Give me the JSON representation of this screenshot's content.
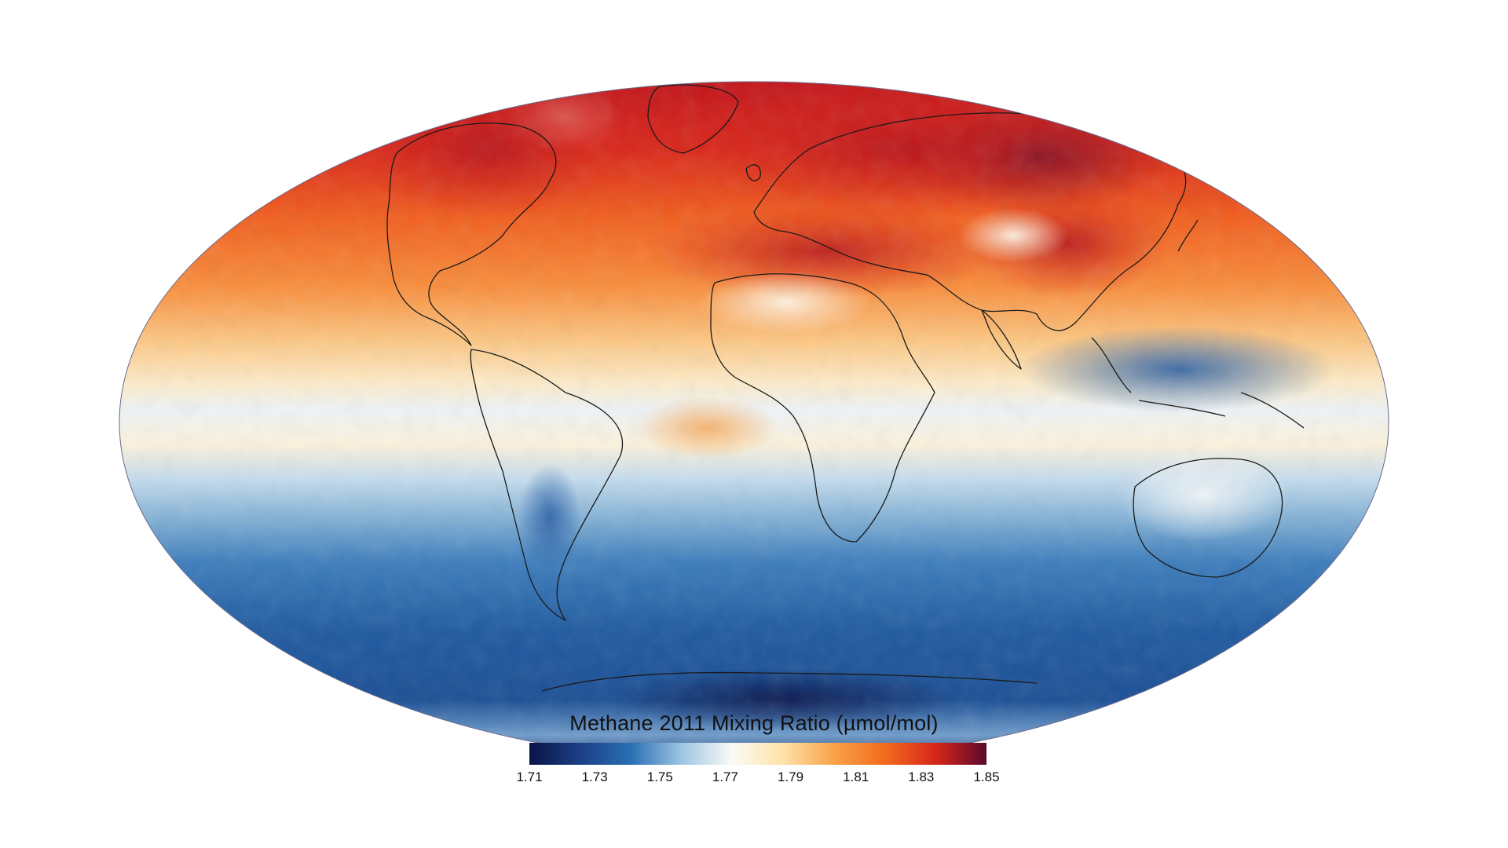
{
  "map": {
    "variable": "Methane",
    "year": "2011",
    "projection": "mollweide",
    "colors": {
      "min": "#0b1446",
      "low": "#1d4e93",
      "mid_low": "#7fb0d6",
      "neutral": "#fbfaf0",
      "mid_high": "#fdc77c",
      "high": "#f56a1e",
      "max": "#5a0a2b",
      "coastline": "#1a1a1a"
    }
  },
  "legend": {
    "title": "Methane 2011 Mixing Ratio (µmol/mol)",
    "ticks": [
      "1.71",
      "1.73",
      "1.75",
      "1.77",
      "1.79",
      "1.81",
      "1.83",
      "1.85"
    ],
    "range": [
      1.71,
      1.85
    ],
    "gradient_stops": [
      "#0b1446",
      "#1b3f85",
      "#2a6fb4",
      "#9ec6e4",
      "#fbfbf4",
      "#fde2a8",
      "#f9a24a",
      "#f26b1c",
      "#d7261b",
      "#5a0a2b"
    ]
  }
}
